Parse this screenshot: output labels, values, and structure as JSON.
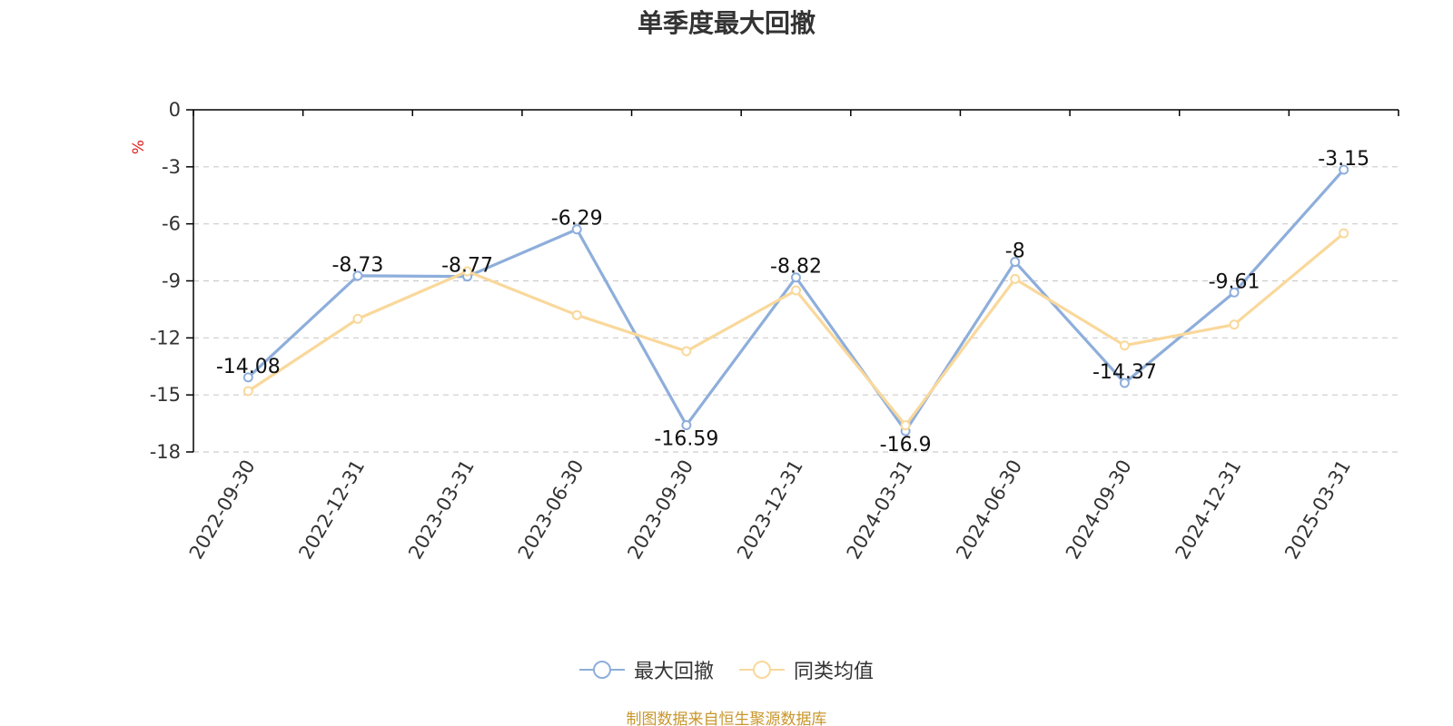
{
  "colors": {
    "series_max_drawdown": "#8eaedb",
    "series_peer_avg": "#f9d89b",
    "unit_label": "#e02020",
    "source_note": "#c8962c",
    "grid": "#cccccc",
    "axis": "#000000"
  },
  "source_note": "制图数据来自恒生聚源数据库",
  "chart_data": {
    "type": "line",
    "title": "单季度最大回撤",
    "ylabel": "%",
    "xlabel": "",
    "ylim": [
      -18,
      0
    ],
    "yticks": [
      0,
      -3,
      -6,
      -9,
      -12,
      -15,
      -18
    ],
    "grid": "horizontal-dashed",
    "legend_position": "bottom-center",
    "categories": [
      "2022-09-30",
      "2022-12-31",
      "2023-03-31",
      "2023-06-30",
      "2023-09-30",
      "2023-12-31",
      "2024-03-31",
      "2024-06-30",
      "2024-09-30",
      "2024-12-31",
      "2025-03-31"
    ],
    "series": [
      {
        "name": "最大回撤",
        "color": "#8eaedb",
        "values": [
          -14.08,
          -8.73,
          -8.77,
          -6.29,
          -16.59,
          -8.82,
          -16.9,
          -8,
          -14.37,
          -9.61,
          -3.15
        ],
        "labels": [
          "-14.08",
          "-8.73",
          "-8.77",
          "-6.29",
          "-16.59",
          "-8.82",
          "-16.9",
          "-8",
          "-14.37",
          "-9.61",
          "-3.15"
        ]
      },
      {
        "name": "同类均值",
        "color": "#f9d89b",
        "values": [
          -14.8,
          -11.0,
          -8.5,
          -10.8,
          -12.7,
          -9.5,
          -16.6,
          -8.9,
          -12.4,
          -11.3,
          -6.5
        ]
      }
    ]
  }
}
